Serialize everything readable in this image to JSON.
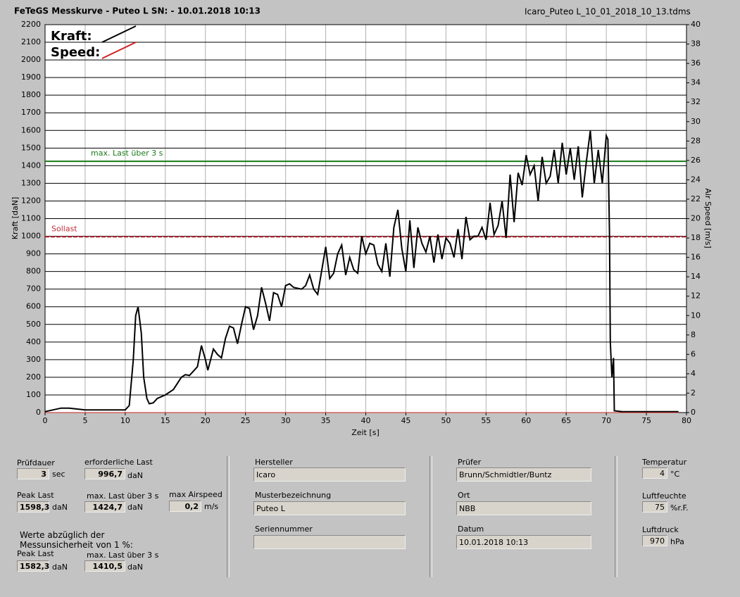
{
  "header": {
    "title": "FeTeGS Messkurve - Puteo L  SN:  - 10.01.2018 10:13",
    "file": "Icaro_Puteo L_10_01_2018_10_13.tdms"
  },
  "chart_data": {
    "type": "line",
    "x_label": "Zeit [s]",
    "y_label": "Kraft [daN]",
    "y2_label": "Air Speed [m/s]",
    "xlim": [
      0,
      80
    ],
    "xticks": [
      0,
      5,
      10,
      15,
      20,
      25,
      30,
      35,
      40,
      45,
      50,
      55,
      60,
      65,
      70,
      75,
      80
    ],
    "ylim": [
      0,
      2200
    ],
    "yticks": [
      0,
      100,
      200,
      300,
      400,
      500,
      600,
      700,
      800,
      900,
      1000,
      1100,
      1200,
      1300,
      1400,
      1500,
      1600,
      1700,
      1800,
      1900,
      2000,
      2100,
      2200
    ],
    "y2lim": [
      0,
      40
    ],
    "y2ticks": [
      0,
      2,
      4,
      6,
      8,
      10,
      12,
      14,
      16,
      18,
      20,
      22,
      24,
      26,
      28,
      30,
      32,
      34,
      36,
      38,
      40
    ],
    "grid": true,
    "legend": "top-left",
    "hlines": [
      {
        "label": "max. Last über  3 s",
        "value": 1424.7,
        "color": "#1a7a1a"
      },
      {
        "label": "Sollast",
        "value": 996.7,
        "color": "#c0303a"
      }
    ],
    "series": [
      {
        "name": "Kraft:",
        "color": "#000000",
        "x": [
          0,
          1,
          2,
          3,
          4,
          5,
          6,
          7,
          8,
          9,
          10,
          10.5,
          11,
          11.3,
          11.6,
          12,
          12.3,
          12.7,
          13,
          13.5,
          14,
          15,
          16,
          17,
          17.5,
          18,
          19,
          19.5,
          20,
          20.3,
          21,
          21.5,
          22,
          22.5,
          23,
          23.5,
          24,
          24.5,
          25,
          25.5,
          26,
          26.5,
          27,
          27.5,
          28,
          28.5,
          29,
          29.5,
          30,
          30.5,
          31,
          32,
          32.5,
          33,
          33.5,
          34,
          35,
          35.5,
          36,
          36.5,
          37,
          37.5,
          38,
          38.5,
          39,
          39.5,
          40,
          40.5,
          41,
          41.5,
          42,
          42.5,
          43,
          43.5,
          44,
          44.5,
          45,
          45.5,
          46,
          46.5,
          47,
          47.5,
          48,
          48.5,
          49,
          49.5,
          50,
          50.5,
          51,
          51.5,
          52,
          52.5,
          53,
          53.5,
          54,
          54.5,
          55,
          55.5,
          56,
          56.5,
          57,
          57.5,
          58,
          58.5,
          59,
          59.5,
          60,
          60.5,
          61,
          61.5,
          62,
          62.5,
          63,
          63.5,
          64,
          64.5,
          65,
          65.5,
          66,
          66.5,
          67,
          67.5,
          68,
          68.5,
          69,
          69.5,
          70,
          70.2,
          70.4,
          70.5,
          70.7,
          70.9,
          71,
          72,
          79
        ],
        "values": [
          5,
          15,
          25,
          25,
          20,
          15,
          15,
          15,
          15,
          15,
          15,
          40,
          300,
          550,
          600,
          450,
          200,
          80,
          50,
          55,
          80,
          100,
          130,
          200,
          215,
          210,
          260,
          380,
          300,
          240,
          360,
          330,
          310,
          420,
          490,
          480,
          390,
          500,
          600,
          590,
          470,
          550,
          710,
          620,
          520,
          680,
          670,
          600,
          720,
          730,
          710,
          700,
          720,
          780,
          700,
          670,
          940,
          760,
          790,
          900,
          950,
          780,
          880,
          810,
          790,
          1000,
          900,
          960,
          950,
          840,
          800,
          960,
          770,
          1050,
          1150,
          930,
          800,
          1090,
          820,
          1050,
          960,
          910,
          1000,
          850,
          1010,
          870,
          990,
          960,
          880,
          1040,
          870,
          1110,
          980,
          1000,
          1000,
          1050,
          980,
          1190,
          1010,
          1060,
          1200,
          990,
          1350,
          1080,
          1360,
          1290,
          1460,
          1350,
          1400,
          1200,
          1450,
          1300,
          1340,
          1490,
          1300,
          1530,
          1350,
          1500,
          1320,
          1510,
          1220,
          1420,
          1598.3,
          1300,
          1490,
          1300,
          1570,
          1550,
          1000,
          400,
          200,
          310,
          10,
          5,
          5
        ]
      },
      {
        "name": "Speed:",
        "color": "#d02020",
        "axis": "y2",
        "x": [
          0,
          79
        ],
        "values": [
          0,
          0
        ]
      }
    ]
  },
  "panel": {
    "pruefdauer": {
      "label": "Prüfdauer",
      "value": "3",
      "unit": "sec"
    },
    "erf_last": {
      "label": "erforderliche Last",
      "value": "996,7",
      "unit": "daN"
    },
    "peak": {
      "label": "Peak Last",
      "value": "1598,3",
      "unit": "daN"
    },
    "max3": {
      "label": "max. Last über  3 s",
      "value": "1424,7",
      "unit": "daN"
    },
    "airspeed": {
      "label": "max Airspeed",
      "value": "0,2",
      "unit": "m/s"
    },
    "note": [
      "Werte abzüglich der",
      "Messunsicherheit von 1  %:"
    ],
    "peak_u": {
      "label": "Peak Last",
      "value": "1582,3",
      "unit": "daN"
    },
    "max3_u": {
      "label": "max. Last über  3 s",
      "value": "1410,5",
      "unit": "daN"
    },
    "hersteller": {
      "label": "Hersteller",
      "value": "Icaro"
    },
    "muster": {
      "label": "Musterbezeichnung",
      "value": "Puteo L"
    },
    "serie": {
      "label": "Seriennummer"
    },
    "pruefer": {
      "label": "Prüfer",
      "value": "Brunn/Schmidtler/Buntz"
    },
    "ort": {
      "label": "Ort",
      "value": "NBB"
    },
    "datum": {
      "label": "Datum",
      "value": "10.01.2018 10:13"
    },
    "temp": {
      "label": "Temperatur",
      "value": "4",
      "unit": "°C"
    },
    "feuchte": {
      "label": "Luftfeuchte",
      "value": "75",
      "unit": "%r.F."
    },
    "druck": {
      "label": "Luftdruck",
      "value": "970",
      "unit": "hPa"
    }
  }
}
